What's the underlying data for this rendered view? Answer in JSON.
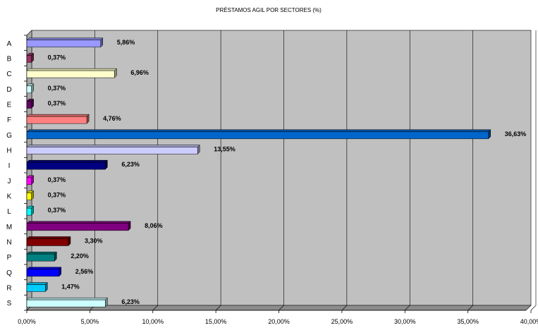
{
  "chart_data": {
    "type": "bar",
    "orientation": "horizontal",
    "title": "PRÉSTAMOS AGIL POR SECTORES (%)",
    "xlabel": "",
    "ylabel": "",
    "xlim": [
      0,
      40
    ],
    "x_ticks": [
      0,
      5,
      10,
      15,
      20,
      25,
      30,
      35,
      40
    ],
    "x_tick_labels": [
      "0,00%",
      "5,00%",
      "10,00%",
      "15,00%",
      "20,00%",
      "25,00%",
      "30,00%",
      "35,00%",
      "40,00%"
    ],
    "grid": "vertical",
    "legend": "none",
    "plot_background": "#c0c0c0",
    "categories": [
      "A",
      "B",
      "C",
      "D",
      "E",
      "F",
      "G",
      "H",
      "I",
      "J",
      "K",
      "L",
      "M",
      "N",
      "P",
      "Q",
      "R",
      "S"
    ],
    "values": [
      5.86,
      0.37,
      6.96,
      0.37,
      0.37,
      4.76,
      36.63,
      13.55,
      6.23,
      0.37,
      0.37,
      0.37,
      8.06,
      3.3,
      2.2,
      2.56,
      1.47,
      6.23
    ],
    "value_labels": [
      "5,86%",
      "0,37%",
      "6,96%",
      "0,37%",
      "0,37%",
      "4,76%",
      "36,63%",
      "13,55%",
      "6,23%",
      "0,37%",
      "0,37%",
      "0,37%",
      "8,06%",
      "3,30%",
      "2,20%",
      "2,56%",
      "1,47%",
      "6,23%"
    ],
    "colors": [
      "#9999ff",
      "#993366",
      "#ffffcc",
      "#ccffff",
      "#660066",
      "#ff8080",
      "#0066cc",
      "#ccccff",
      "#000080",
      "#ff00ff",
      "#ffff00",
      "#00ffff",
      "#800080",
      "#800000",
      "#008080",
      "#0000ff",
      "#00ccff",
      "#ccffff"
    ]
  }
}
